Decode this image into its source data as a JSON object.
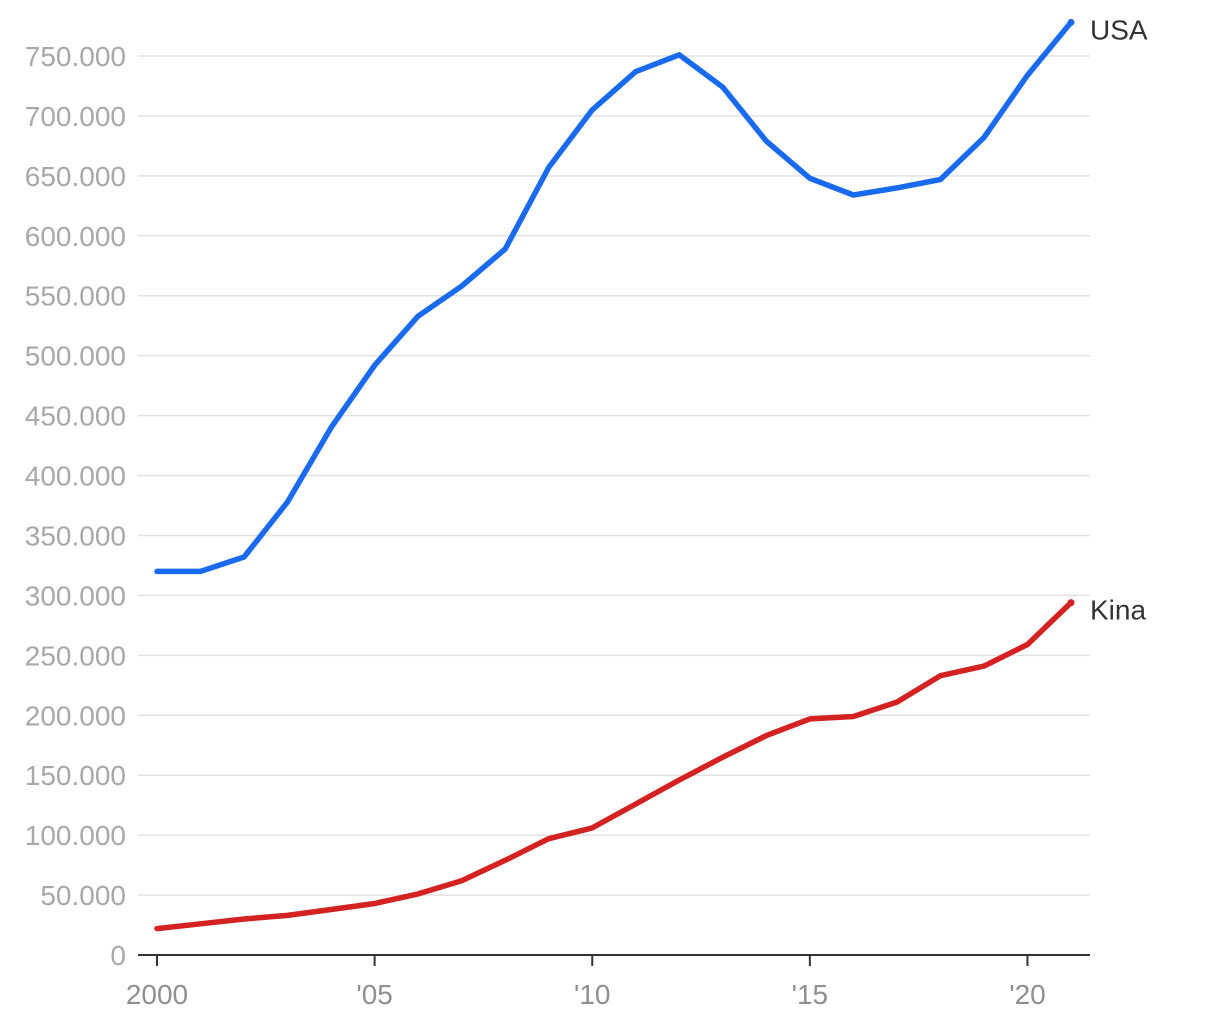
{
  "chart_data": {
    "type": "line",
    "title": "",
    "xlabel": "",
    "ylabel": "",
    "x": [
      2000,
      2001,
      2002,
      2003,
      2004,
      2005,
      2006,
      2007,
      2008,
      2009,
      2010,
      2011,
      2012,
      2013,
      2014,
      2015,
      2016,
      2017,
      2018,
      2019,
      2020,
      2021
    ],
    "ylim": [
      0,
      780000
    ],
    "xlim": [
      2000,
      2021
    ],
    "grid": true,
    "legend": "direct labels at line ends",
    "y_ticks": [
      {
        "value": 0,
        "label": "0"
      },
      {
        "value": 50000,
        "label": "50.000"
      },
      {
        "value": 100000,
        "label": "100.000"
      },
      {
        "value": 150000,
        "label": "150.000"
      },
      {
        "value": 200000,
        "label": "200.000"
      },
      {
        "value": 250000,
        "label": "250.000"
      },
      {
        "value": 300000,
        "label": "300.000"
      },
      {
        "value": 350000,
        "label": "350.000"
      },
      {
        "value": 400000,
        "label": "400.000"
      },
      {
        "value": 450000,
        "label": "450.000"
      },
      {
        "value": 500000,
        "label": "500.000"
      },
      {
        "value": 550000,
        "label": "550.000"
      },
      {
        "value": 600000,
        "label": "600.000"
      },
      {
        "value": 650000,
        "label": "650.000"
      },
      {
        "value": 700000,
        "label": "700.000"
      },
      {
        "value": 750000,
        "label": "750.000"
      }
    ],
    "x_ticks": [
      {
        "value": 2000,
        "label": "2000"
      },
      {
        "value": 2005,
        "label": "'05"
      },
      {
        "value": 2010,
        "label": "'10"
      },
      {
        "value": 2015,
        "label": "'15"
      },
      {
        "value": 2020,
        "label": "'20"
      }
    ],
    "series": [
      {
        "name": "USA",
        "color": "#1a6aef",
        "values": [
          320000,
          320000,
          332000,
          378000,
          440000,
          492000,
          533000,
          558000,
          589000,
          657000,
          705000,
          737000,
          751000,
          724000,
          679000,
          648000,
          634000,
          640000,
          647000,
          682000,
          734000,
          778000
        ]
      },
      {
        "name": "Kina",
        "color": "#d42222",
        "values": [
          22000,
          26000,
          30000,
          33000,
          38000,
          43000,
          51000,
          62000,
          79000,
          97000,
          106000,
          126000,
          146000,
          165000,
          183000,
          197000,
          199000,
          211000,
          233000,
          241000,
          259000,
          294000
        ]
      }
    ]
  }
}
